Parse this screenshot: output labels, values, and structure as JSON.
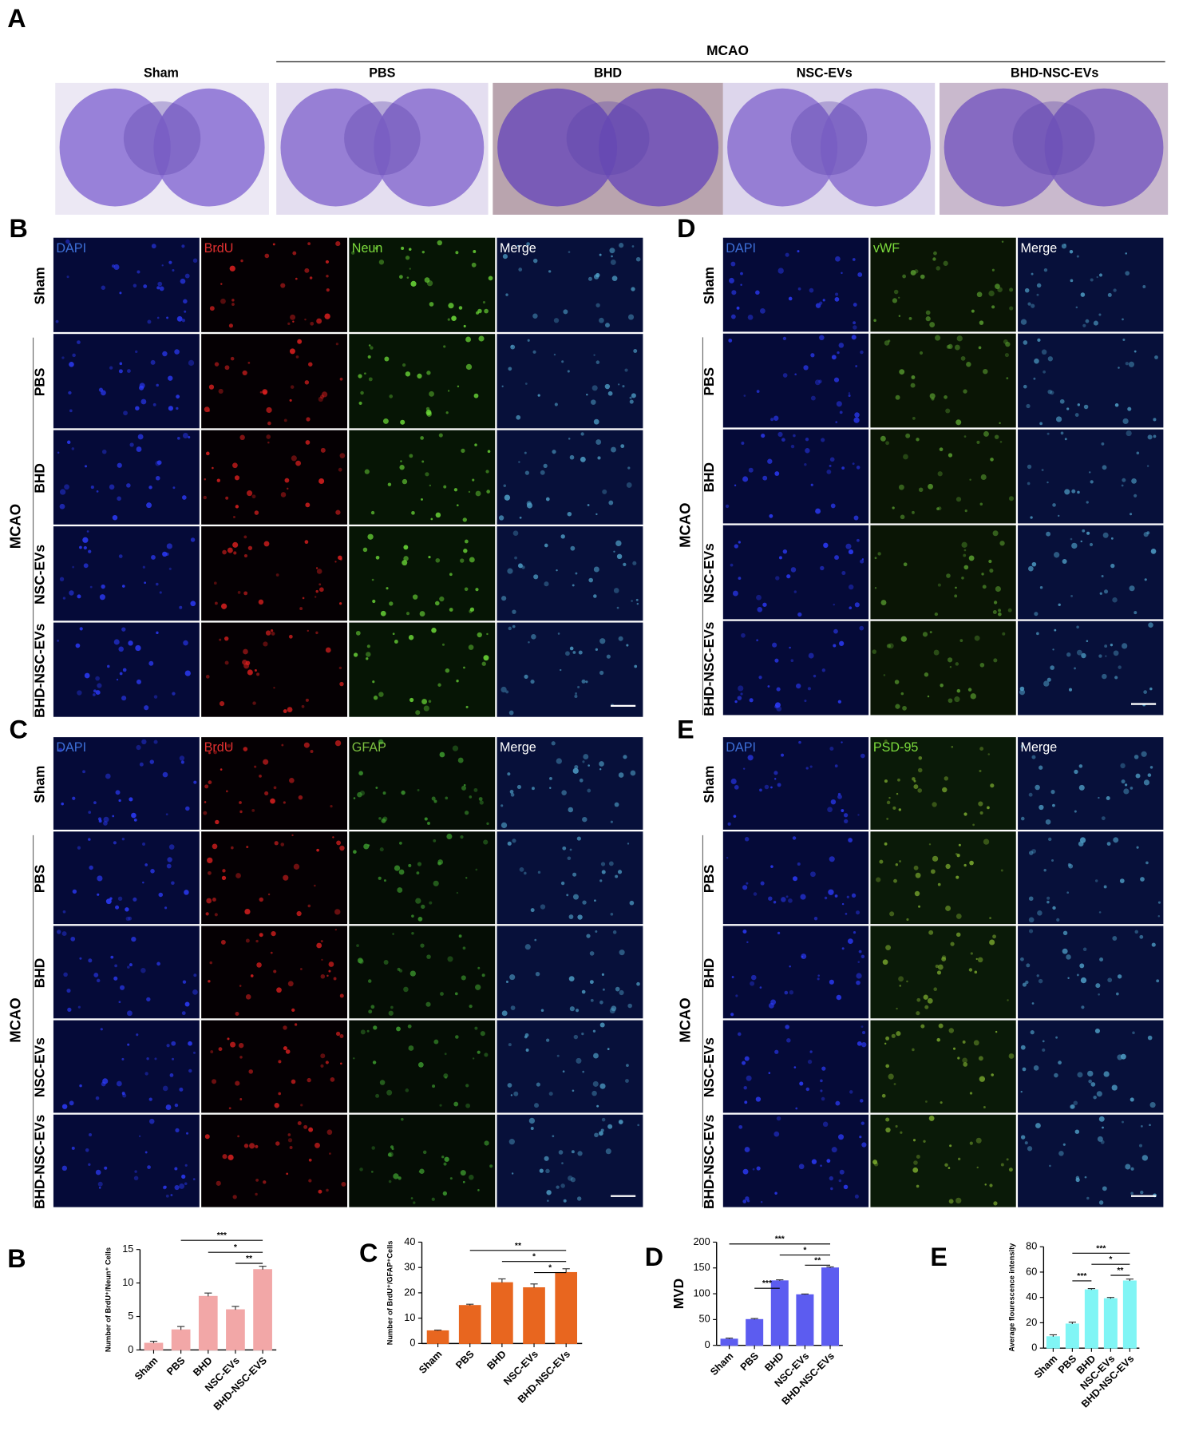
{
  "panel_a": {
    "letter": "A",
    "group": "MCAO",
    "columns": [
      "Sham",
      "PBS",
      "BHD",
      "NSC-EVs",
      "BHD-NSC-EVs"
    ]
  },
  "panels": [
    {
      "letter": "B",
      "channels": [
        "DAPI",
        "BrdU",
        "Neun",
        "Merge"
      ],
      "rows": [
        "Sham",
        "PBS",
        "BHD",
        "NSC-EVs",
        "BHD-NSC-EVs"
      ],
      "group": "MCAO"
    },
    {
      "letter": "D",
      "channels": [
        "DAPI",
        "vWF",
        "Merge"
      ],
      "rows": [
        "Sham",
        "PBS",
        "BHD",
        "NSC-EVs",
        "BHD-NSC-EVs"
      ],
      "group": "MCAO"
    },
    {
      "letter": "C",
      "channels": [
        "DAPI",
        "BrdU",
        "GFAP",
        "Merge"
      ],
      "rows": [
        "Sham",
        "PBS",
        "BHD",
        "NSC-EVs",
        "BHD-NSC-EVs"
      ],
      "group": "MCAO"
    },
    {
      "letter": "E",
      "channels": [
        "DAPI",
        "PSD-95",
        "Merge"
      ],
      "rows": [
        "Sham",
        "PBS",
        "BHD",
        "NSC-EVs",
        "BHD-NSC-EVs"
      ],
      "group": "MCAO"
    }
  ],
  "chart_data": [
    {
      "type": "bar",
      "panel_label": "B",
      "ylabel": "Number of BrdU⁺/Neun⁺ Cells",
      "categories": [
        "Sham",
        "PBS",
        "BHD",
        "NSC-EVs",
        "BHD-NSC-EVS"
      ],
      "values": [
        1,
        3,
        8,
        6,
        12
      ],
      "errors": [
        0.3,
        0.5,
        0.5,
        0.5,
        0.5
      ],
      "color": "#f2a7a7",
      "ylim": [
        0,
        15
      ],
      "yticks": [
        0,
        5,
        10,
        15
      ],
      "significance": [
        "***",
        "*",
        "**"
      ]
    },
    {
      "type": "bar",
      "panel_label": "C",
      "ylabel": "Number of BrdU⁺/GFAP⁺Cells",
      "categories": [
        "Sham",
        "PBS",
        "BHD",
        "NSC-EVs",
        "BHD-NSC-EVs"
      ],
      "values": [
        5,
        15,
        24,
        22,
        28
      ],
      "errors": [
        0.3,
        0.5,
        1.5,
        1.5,
        1.5
      ],
      "color": "#e8661f",
      "ylim": [
        0,
        40
      ],
      "yticks": [
        0,
        10,
        20,
        30,
        40
      ],
      "significance": [
        "**",
        "*",
        "*"
      ]
    },
    {
      "type": "bar",
      "panel_label": "D",
      "ylabel": "MVD",
      "categories": [
        "Sham",
        "PBS",
        "BHD",
        "NSC-EVs",
        "BHD-NSC-EVs"
      ],
      "values": [
        12,
        50,
        125,
        98,
        150
      ],
      "errors": [
        2,
        2,
        2,
        1.5,
        2
      ],
      "color": "#5c5cf0",
      "ylim": [
        0,
        200
      ],
      "yticks": [
        0,
        50,
        100,
        150,
        200
      ],
      "significance": [
        "***",
        "***",
        "*",
        "**"
      ]
    },
    {
      "type": "bar",
      "panel_label": "E",
      "ylabel": "Average flourescence intensity",
      "categories": [
        "Sham",
        "PBS",
        "BHD",
        "NSC-EVs",
        "BHD-NSC-EVs"
      ],
      "values": [
        9,
        19,
        46,
        39,
        53
      ],
      "errors": [
        1.5,
        1.5,
        1,
        1,
        1.5
      ],
      "color": "#80f5f5",
      "ylim": [
        0,
        80
      ],
      "yticks": [
        0,
        20,
        40,
        60,
        80
      ],
      "significance": [
        "***",
        "***",
        "*",
        "**"
      ]
    }
  ]
}
